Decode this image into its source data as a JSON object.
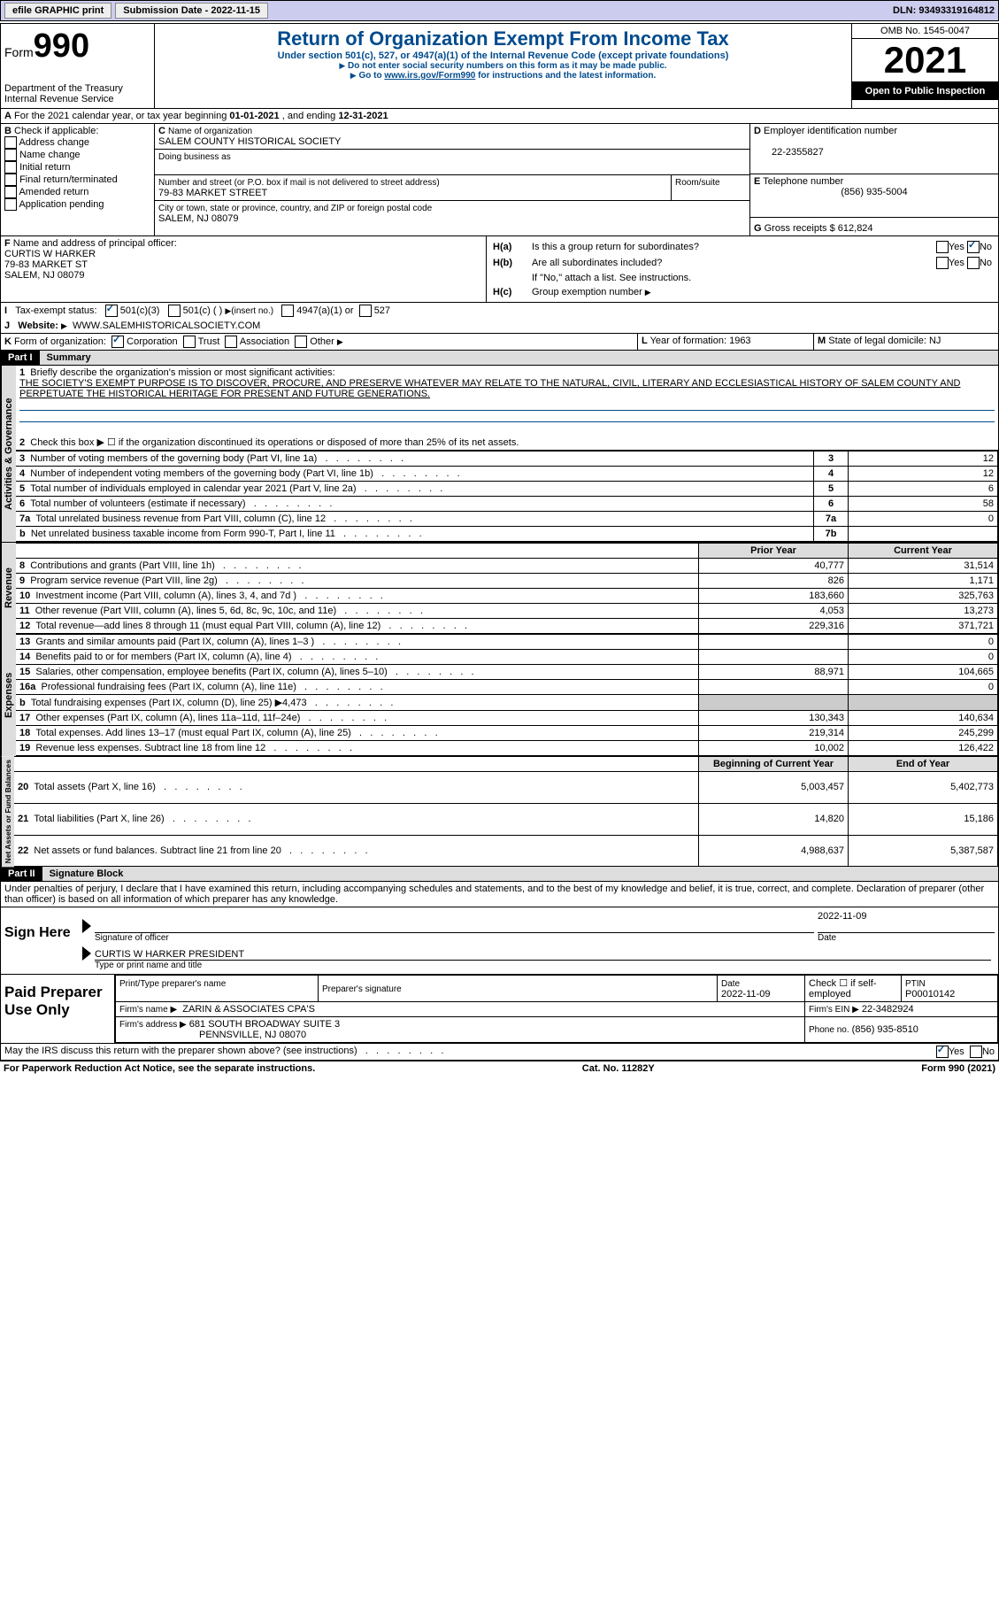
{
  "topbar": {
    "efile": "efile GRAPHIC print",
    "submission_label": "Submission Date - ",
    "submission_date": "2022-11-15",
    "dln_label": "DLN:",
    "dln": "93493319164812"
  },
  "header": {
    "form_word": "Form",
    "form_num": "990",
    "title": "Return of Organization Exempt From Income Tax",
    "subtitle": "Under section 501(c), 527, or 4947(a)(1) of the Internal Revenue Code (except private foundations)",
    "note1": "Do not enter social security numbers on this form as it may be made public.",
    "note2_pre": "Go to ",
    "note2_link": "www.irs.gov/Form990",
    "note2_post": " for instructions and the latest information.",
    "dept": "Department of the Treasury",
    "irs": "Internal Revenue Service",
    "omb_label": "OMB No. ",
    "omb": "1545-0047",
    "year": "2021",
    "public": "Open to Public Inspection"
  },
  "periodA": {
    "text_pre": "For the 2021 calendar year, or tax year beginning ",
    "begin": "01-01-2021",
    "mid": ", and ending ",
    "end": "12-31-2021"
  },
  "boxB": {
    "label": "Check if applicable:",
    "opts": [
      "Address change",
      "Name change",
      "Initial return",
      "Final return/terminated",
      "Amended return",
      "Application pending"
    ]
  },
  "boxC": {
    "name_label": "Name of organization",
    "name": "SALEM COUNTY HISTORICAL SOCIETY",
    "dba_label": "Doing business as",
    "addr_label": "Number and street (or P.O. box if mail is not delivered to street address)",
    "room_label": "Room/suite",
    "addr": "79-83 MARKET STREET",
    "city_label": "City or town, state or province, country, and ZIP or foreign postal code",
    "city": "SALEM, NJ  08079"
  },
  "boxD": {
    "label": "Employer identification number",
    "ein": "22-2355827"
  },
  "boxE": {
    "label": "Telephone number",
    "phone": "(856) 935-5004"
  },
  "boxG": {
    "label": "Gross receipts $",
    "val": "612,824"
  },
  "boxF": {
    "label": "Name and address of principal officer:",
    "name": "CURTIS W HARKER",
    "addr1": "79-83 MARKET ST",
    "addr2": "SALEM, NJ  08079"
  },
  "boxH": {
    "a": "Is this a group return for subordinates?",
    "b": "Are all subordinates included?",
    "b_note": "If \"No,\" attach a list. See instructions.",
    "c": "Group exemption number"
  },
  "boxI": {
    "label": "Tax-exempt status:",
    "opt1": "501(c)(3)",
    "opt2": "501(c) (  )",
    "opt2_note": "(insert no.)",
    "opt3": "4947(a)(1) or",
    "opt4": "527"
  },
  "boxJ": {
    "label": "Website:",
    "val": "WWW.SALEMHISTORICALSOCIETY.COM"
  },
  "boxK": {
    "label": "Form of organization:",
    "opts": [
      "Corporation",
      "Trust",
      "Association",
      "Other"
    ]
  },
  "boxL": {
    "label": "Year of formation:",
    "val": "1963"
  },
  "boxM": {
    "label": "State of legal domicile:",
    "val": "NJ"
  },
  "part1": {
    "title": "Part I",
    "name": "Summary",
    "l1_pre": "Briefly describe the organization's mission or most significant activities:",
    "l1_text": "THE SOCIETY'S EXEMPT PURPOSE IS TO DISCOVER, PROCURE, AND PRESERVE WHATEVER MAY RELATE TO THE NATURAL, CIVIL, LITERARY AND ECCLESIASTICAL HISTORY OF SALEM COUNTY AND PERPETUATE THE HISTORICAL HERITAGE FOR PRESENT AND FUTURE GENERATIONS.",
    "l2": "Check this box ▶ ☐ if the organization discontinued its operations or disposed of more than 25% of its net assets.",
    "rows_ag": [
      {
        "n": "3",
        "t": "Number of voting members of the governing body (Part VI, line 1a)",
        "box": "3",
        "v": "12"
      },
      {
        "n": "4",
        "t": "Number of independent voting members of the governing body (Part VI, line 1b)",
        "box": "4",
        "v": "12"
      },
      {
        "n": "5",
        "t": "Total number of individuals employed in calendar year 2021 (Part V, line 2a)",
        "box": "5",
        "v": "6"
      },
      {
        "n": "6",
        "t": "Total number of volunteers (estimate if necessary)",
        "box": "6",
        "v": "58"
      },
      {
        "n": "7a",
        "t": "Total unrelated business revenue from Part VIII, column (C), line 12",
        "box": "7a",
        "v": "0"
      },
      {
        "n": "b",
        "t": "Net unrelated business taxable income from Form 990-T, Part I, line 11",
        "box": "7b",
        "v": ""
      }
    ],
    "col_prior": "Prior Year",
    "col_current": "Current Year",
    "rows_rev": [
      {
        "n": "8",
        "t": "Contributions and grants (Part VIII, line 1h)",
        "p": "40,777",
        "c": "31,514"
      },
      {
        "n": "9",
        "t": "Program service revenue (Part VIII, line 2g)",
        "p": "826",
        "c": "1,171"
      },
      {
        "n": "10",
        "t": "Investment income (Part VIII, column (A), lines 3, 4, and 7d )",
        "p": "183,660",
        "c": "325,763"
      },
      {
        "n": "11",
        "t": "Other revenue (Part VIII, column (A), lines 5, 6d, 8c, 9c, 10c, and 11e)",
        "p": "4,053",
        "c": "13,273"
      },
      {
        "n": "12",
        "t": "Total revenue—add lines 8 through 11 (must equal Part VIII, column (A), line 12)",
        "p": "229,316",
        "c": "371,721"
      }
    ],
    "rows_exp": [
      {
        "n": "13",
        "t": "Grants and similar amounts paid (Part IX, column (A), lines 1–3 )",
        "p": "",
        "c": "0"
      },
      {
        "n": "14",
        "t": "Benefits paid to or for members (Part IX, column (A), line 4)",
        "p": "",
        "c": "0"
      },
      {
        "n": "15",
        "t": "Salaries, other compensation, employee benefits (Part IX, column (A), lines 5–10)",
        "p": "88,971",
        "c": "104,665"
      },
      {
        "n": "16a",
        "t": "Professional fundraising fees (Part IX, column (A), line 11e)",
        "p": "",
        "c": "0"
      },
      {
        "n": "b",
        "t": "Total fundraising expenses (Part IX, column (D), line 25) ▶4,473",
        "p": "shade",
        "c": "shade"
      },
      {
        "n": "17",
        "t": "Other expenses (Part IX, column (A), lines 11a–11d, 11f–24e)",
        "p": "130,343",
        "c": "140,634"
      },
      {
        "n": "18",
        "t": "Total expenses. Add lines 13–17 (must equal Part IX, column (A), line 25)",
        "p": "219,314",
        "c": "245,299"
      },
      {
        "n": "19",
        "t": "Revenue less expenses. Subtract line 18 from line 12",
        "p": "10,002",
        "c": "126,422"
      }
    ],
    "col_bgn": "Beginning of Current Year",
    "col_end": "End of Year",
    "rows_net": [
      {
        "n": "20",
        "t": "Total assets (Part X, line 16)",
        "p": "5,003,457",
        "c": "5,402,773"
      },
      {
        "n": "21",
        "t": "Total liabilities (Part X, line 26)",
        "p": "14,820",
        "c": "15,186"
      },
      {
        "n": "22",
        "t": "Net assets or fund balances. Subtract line 21 from line 20",
        "p": "4,988,637",
        "c": "5,387,587"
      }
    ],
    "side_ag": "Activities & Governance",
    "side_rev": "Revenue",
    "side_exp": "Expenses",
    "side_net": "Net Assets or Fund Balances"
  },
  "part2": {
    "title": "Part II",
    "name": "Signature Block",
    "decl": "Under penalties of perjury, I declare that I have examined this return, including accompanying schedules and statements, and to the best of my knowledge and belief, it is true, correct, and complete. Declaration of preparer (other than officer) is based on all information of which preparer has any knowledge.",
    "sign_here": "Sign Here",
    "sig_officer": "Signature of officer",
    "sig_date": "2022-11-09",
    "date_label": "Date",
    "typed_name": "CURTIS W HARKER  PRESIDENT",
    "typed_label": "Type or print name and title",
    "paid": "Paid Preparer Use Only",
    "p_name_label": "Print/Type preparer's name",
    "p_sig_label": "Preparer's signature",
    "p_date_label": "Date",
    "p_date": "2022-11-09",
    "p_check_label": "Check ☐ if self-employed",
    "ptin_label": "PTIN",
    "ptin": "P00010142",
    "firm_name_label": "Firm's name   ▶",
    "firm_name": "ZARIN & ASSOCIATES CPA'S",
    "firm_ein_label": "Firm's EIN ▶",
    "firm_ein": "22-3482924",
    "firm_addr_label": "Firm's address ▶",
    "firm_addr1": "681 SOUTH BROADWAY SUITE 3",
    "firm_addr2": "PENNSVILLE, NJ  08070",
    "firm_phone_label": "Phone no.",
    "firm_phone": "(856) 935-8510",
    "discuss": "May the IRS discuss this return with the preparer shown above? (see instructions)"
  },
  "footer": {
    "left": "For Paperwork Reduction Act Notice, see the separate instructions.",
    "mid": "Cat. No. 11282Y",
    "right": "Form 990 (2021)"
  },
  "yes": "Yes",
  "no": "No",
  "letters": {
    "A": "A",
    "B": "B",
    "C": "C",
    "D": "D",
    "E": "E",
    "F": "F",
    "G": "G",
    "Ha": "H(a)",
    "Hb": "H(b)",
    "Hc": "H(c)",
    "I": "I",
    "J": "J",
    "K": "K",
    "L": "L",
    "M": "M"
  }
}
